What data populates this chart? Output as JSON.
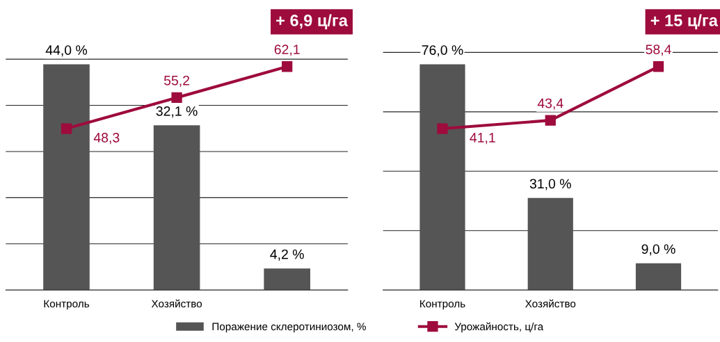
{
  "chart_data": [
    {
      "type": "bar",
      "categories": [
        "Контроль",
        "Хозяйство",
        null
      ],
      "yticks": [
        {
          "value": 0,
          "label": null
        },
        {
          "value": 9,
          "label": null
        },
        {
          "value": 18,
          "label": null
        },
        {
          "value": 27,
          "label": null
        },
        {
          "value": 36,
          "label": null
        },
        {
          "value": 45,
          "label": null
        }
      ],
      "grid": "y",
      "tick_labels": "x",
      "legend": "bottom",
      "annotations": [
        "+ 6,9 ц/га"
      ],
      "series": [
        {
          "name": "Поражение склеротиниозом, %",
          "color": "#555555",
          "values": [
            44.0,
            32.1,
            4.2
          ],
          "value_labels": [
            "44,0 %",
            "32,1 %",
            "4,2 %"
          ]
        },
        {
          "name": "Урожайность, ц/га",
          "type": "line",
          "axis": "y2",
          "color": "#9e0b3d",
          "marker": "square",
          "line_style": "solid",
          "values": [
            48.3,
            55.2,
            62.1
          ],
          "value_labels": [
            "48,3",
            "55,2",
            "62,1"
          ]
        }
      ]
    },
    {
      "type": "bar",
      "categories": [
        "Контроль",
        "Хозяйство",
        null
      ],
      "yticks": [
        {
          "value": 0,
          "label": null
        },
        {
          "value": 20,
          "label": null
        },
        {
          "value": 40,
          "label": null
        },
        {
          "value": 60,
          "label": null
        },
        {
          "value": 80,
          "label": null
        }
      ],
      "grid": "y",
      "tick_labels": "x",
      "annotations": [
        "+ 15 ц/га"
      ],
      "series": [
        {
          "color": "#555555",
          "values": [
            76.0,
            31.0,
            9.0
          ],
          "value_labels": [
            "76,0 %",
            "31,0 %",
            "9,0 %"
          ]
        },
        {
          "type": "line",
          "axis": "y2",
          "color": "#9e0b3d",
          "marker": "square",
          "line_style": "solid",
          "values": [
            41.1,
            43.4,
            58.4
          ],
          "value_labels": [
            "41,1",
            "43,4",
            "58,4"
          ]
        }
      ]
    }
  ]
}
